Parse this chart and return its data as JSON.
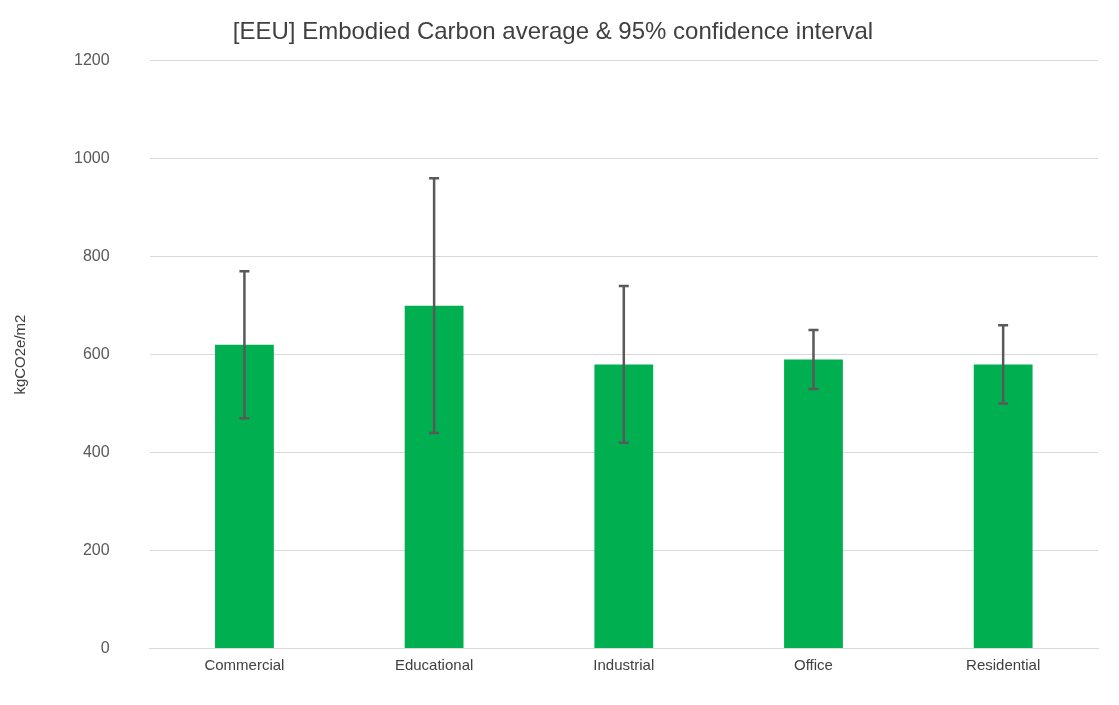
{
  "chart_data": {
    "type": "bar",
    "title": "[EEU] Embodied Carbon average & 95% confidence interval",
    "ylabel": "kgCO2e/m2",
    "categories": [
      "Commercial",
      "Educational",
      "Industrial",
      "Office",
      "Residential"
    ],
    "values": [
      620,
      700,
      580,
      590,
      580
    ],
    "errors": [
      [
        470,
        770
      ],
      [
        440,
        960
      ],
      [
        420,
        740
      ],
      [
        530,
        650
      ],
      [
        500,
        660
      ]
    ],
    "color": "#00b050",
    "ylim": [
      0,
      1200
    ],
    "yticks": [
      0,
      200,
      400,
      600,
      800,
      1000,
      1200
    ],
    "grid": "y",
    "legend": false
  }
}
